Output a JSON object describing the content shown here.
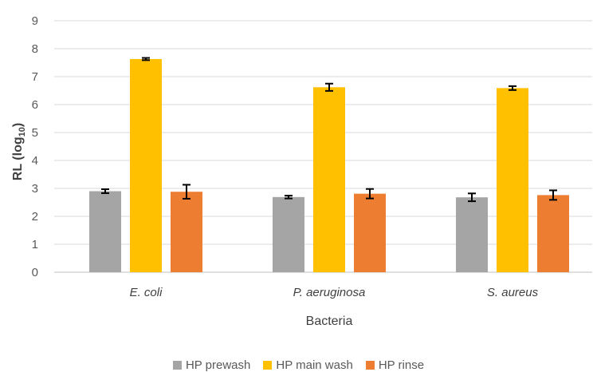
{
  "chart_data": {
    "type": "bar",
    "categories": [
      "E. coli",
      "P. aeruginosa",
      "S. aureus"
    ],
    "series": [
      {
        "name": "HP prewash",
        "color": "#a5a5a5",
        "values": [
          2.9,
          2.69,
          2.68
        ],
        "errors": [
          0.07,
          0.05,
          0.14
        ]
      },
      {
        "name": "HP main wash",
        "color": "#ffc000",
        "values": [
          7.63,
          6.62,
          6.59
        ],
        "errors": [
          0.04,
          0.13,
          0.07
        ]
      },
      {
        "name": "HP rinse",
        "color": "#ed7d31",
        "values": [
          2.88,
          2.81,
          2.76
        ],
        "errors": [
          0.25,
          0.17,
          0.17
        ]
      }
    ],
    "xlabel": "Bacteria",
    "ylabel": "RL (log10)",
    "ylabel_main": "RL (log",
    "ylabel_sub": "10",
    "ylabel_end": ")",
    "yticks": [
      0,
      1,
      2,
      3,
      4,
      5,
      6,
      7,
      8,
      9
    ],
    "ylim": [
      0,
      9
    ],
    "grid": true,
    "legend_position": "bottom"
  }
}
